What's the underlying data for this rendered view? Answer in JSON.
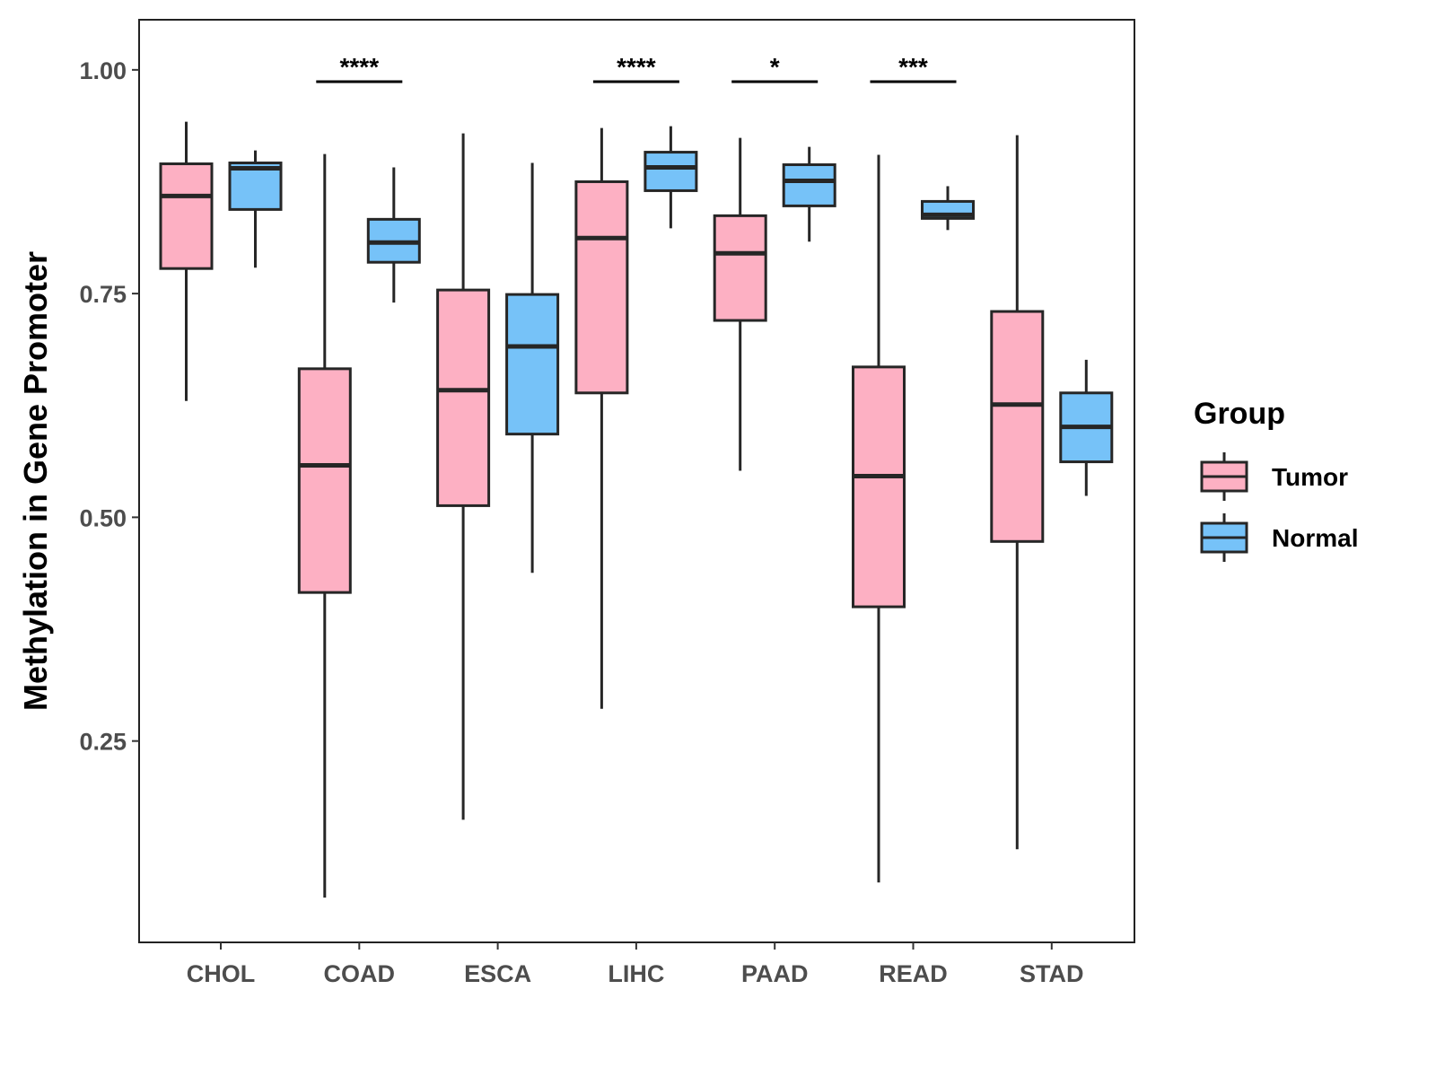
{
  "chart_data": {
    "type": "boxplot",
    "title": "",
    "xlabel": "",
    "ylabel": "Methylation in Gene Promoter",
    "ylim": [
      0.025,
      1.056
    ],
    "yticks": [
      "0.25",
      "0.50",
      "0.75",
      "1.00"
    ],
    "ytick_values": [
      0.25,
      0.5,
      0.75,
      1.0
    ],
    "grid": false,
    "categories": [
      "CHOL",
      "COAD",
      "ESCA",
      "LIHC",
      "PAAD",
      "READ",
      "STAD"
    ],
    "legend": {
      "title": "Group",
      "position": "right",
      "entries": [
        "Tumor",
        "Normal"
      ]
    },
    "colors": {
      "Tumor": "#fdb0c3",
      "Normal": "#76c2f8",
      "stroke": "#262626"
    },
    "series": [
      {
        "name": "Tumor",
        "boxes": [
          {
            "min": 0.63,
            "q1": 0.778,
            "median": 0.859,
            "q3": 0.895,
            "max": 0.942
          },
          {
            "min": 0.075,
            "q1": 0.416,
            "median": 0.558,
            "q3": 0.666,
            "max": 0.906
          },
          {
            "min": 0.162,
            "q1": 0.513,
            "median": 0.642,
            "q3": 0.754,
            "max": 0.929
          },
          {
            "min": 0.286,
            "q1": 0.639,
            "median": 0.812,
            "q3": 0.875,
            "max": 0.935
          },
          {
            "min": 0.552,
            "q1": 0.72,
            "median": 0.795,
            "q3": 0.837,
            "max": 0.924
          },
          {
            "min": 0.092,
            "q1": 0.4,
            "median": 0.546,
            "q3": 0.668,
            "max": 0.905
          },
          {
            "min": 0.129,
            "q1": 0.473,
            "median": 0.626,
            "q3": 0.73,
            "max": 0.927
          }
        ]
      },
      {
        "name": "Normal",
        "boxes": [
          {
            "min": 0.779,
            "q1": 0.844,
            "median": 0.89,
            "q3": 0.896,
            "max": 0.91
          },
          {
            "min": 0.74,
            "q1": 0.785,
            "median": 0.807,
            "q3": 0.833,
            "max": 0.891
          },
          {
            "min": 0.438,
            "q1": 0.593,
            "median": 0.691,
            "q3": 0.749,
            "max": 0.896
          },
          {
            "min": 0.823,
            "q1": 0.865,
            "median": 0.891,
            "q3": 0.908,
            "max": 0.937
          },
          {
            "min": 0.808,
            "q1": 0.848,
            "median": 0.876,
            "q3": 0.894,
            "max": 0.914
          },
          {
            "min": 0.821,
            "q1": 0.834,
            "median": 0.838,
            "q3": 0.853,
            "max": 0.87
          },
          {
            "min": 0.524,
            "q1": 0.562,
            "median": 0.601,
            "q3": 0.639,
            "max": 0.676
          }
        ]
      }
    ],
    "annotations": [
      {
        "category": "COAD",
        "label": "****"
      },
      {
        "category": "LIHC",
        "label": "****"
      },
      {
        "category": "PAAD",
        "label": "*"
      },
      {
        "category": "READ",
        "label": "***"
      }
    ]
  }
}
